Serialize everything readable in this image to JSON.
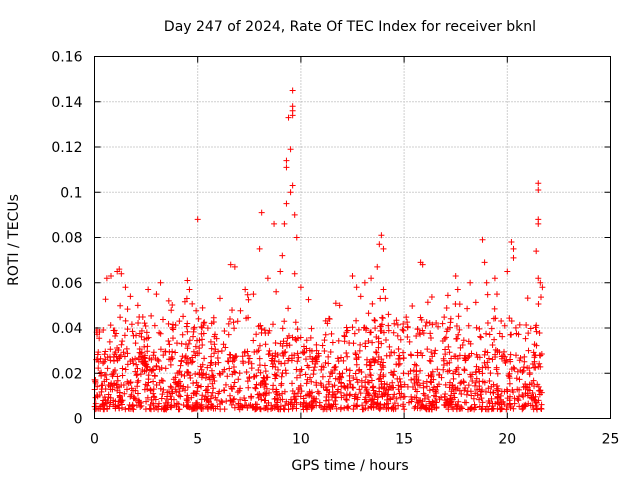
{
  "chart_data": {
    "type": "scatter",
    "title": "Day 247 of 2024, Rate Of TEC Index for receiver bknl",
    "xlabel": "GPS time / hours",
    "ylabel": "ROTI / TECUs",
    "xlim": [
      0,
      25
    ],
    "ylim": [
      0,
      0.16
    ],
    "xticks": [
      0,
      5,
      10,
      15,
      20,
      25
    ],
    "yticks": [
      0,
      0.02,
      0.04,
      0.06,
      0.08,
      0.1,
      0.12,
      0.14,
      0.16
    ],
    "grid": true,
    "marker": "+",
    "color": "#ff0000",
    "series": [
      {
        "name": "ROTI",
        "note": "dense cloud of points from ~0 to ~21.7 hours, bulk between 0.005 and 0.035 TECU/s",
        "baseline_range": [
          0.004,
          0.03
        ],
        "time_range": [
          0.0,
          21.7
        ],
        "outliers": [
          {
            "x": 0.6,
            "y": 0.062
          },
          {
            "x": 0.8,
            "y": 0.063
          },
          {
            "x": 1.1,
            "y": 0.065
          },
          {
            "x": 1.2,
            "y": 0.066
          },
          {
            "x": 1.3,
            "y": 0.064
          },
          {
            "x": 1.5,
            "y": 0.058
          },
          {
            "x": 2.1,
            "y": 0.05
          },
          {
            "x": 2.6,
            "y": 0.057
          },
          {
            "x": 3.0,
            "y": 0.055
          },
          {
            "x": 3.2,
            "y": 0.06
          },
          {
            "x": 3.6,
            "y": 0.052
          },
          {
            "x": 4.6,
            "y": 0.057
          },
          {
            "x": 4.5,
            "y": 0.061
          },
          {
            "x": 5.0,
            "y": 0.088
          },
          {
            "x": 6.6,
            "y": 0.068
          },
          {
            "x": 6.8,
            "y": 0.067
          },
          {
            "x": 7.3,
            "y": 0.057
          },
          {
            "x": 7.7,
            "y": 0.055
          },
          {
            "x": 8.0,
            "y": 0.075
          },
          {
            "x": 8.1,
            "y": 0.091
          },
          {
            "x": 8.4,
            "y": 0.062
          },
          {
            "x": 8.7,
            "y": 0.086
          },
          {
            "x": 8.8,
            "y": 0.056
          },
          {
            "x": 9.0,
            "y": 0.065
          },
          {
            "x": 9.1,
            "y": 0.072
          },
          {
            "x": 9.2,
            "y": 0.086
          },
          {
            "x": 9.3,
            "y": 0.095
          },
          {
            "x": 9.3,
            "y": 0.111
          },
          {
            "x": 9.3,
            "y": 0.114
          },
          {
            "x": 9.4,
            "y": 0.133
          },
          {
            "x": 9.5,
            "y": 0.1
          },
          {
            "x": 9.5,
            "y": 0.119
          },
          {
            "x": 9.6,
            "y": 0.134
          },
          {
            "x": 9.6,
            "y": 0.136
          },
          {
            "x": 9.6,
            "y": 0.138
          },
          {
            "x": 9.6,
            "y": 0.145
          },
          {
            "x": 9.6,
            "y": 0.103
          },
          {
            "x": 9.7,
            "y": 0.09
          },
          {
            "x": 9.8,
            "y": 0.08
          },
          {
            "x": 9.7,
            "y": 0.064
          },
          {
            "x": 10.0,
            "y": 0.058
          },
          {
            "x": 12.5,
            "y": 0.063
          },
          {
            "x": 12.7,
            "y": 0.058
          },
          {
            "x": 12.9,
            "y": 0.054
          },
          {
            "x": 13.1,
            "y": 0.06
          },
          {
            "x": 13.4,
            "y": 0.062
          },
          {
            "x": 13.7,
            "y": 0.067
          },
          {
            "x": 13.8,
            "y": 0.077
          },
          {
            "x": 13.9,
            "y": 0.081
          },
          {
            "x": 14.0,
            "y": 0.075
          },
          {
            "x": 14.0,
            "y": 0.057
          },
          {
            "x": 15.8,
            "y": 0.069
          },
          {
            "x": 15.9,
            "y": 0.068
          },
          {
            "x": 17.5,
            "y": 0.063
          },
          {
            "x": 17.6,
            "y": 0.057
          },
          {
            "x": 18.2,
            "y": 0.06
          },
          {
            "x": 18.8,
            "y": 0.079
          },
          {
            "x": 18.9,
            "y": 0.069
          },
          {
            "x": 19.0,
            "y": 0.06
          },
          {
            "x": 19.4,
            "y": 0.062
          },
          {
            "x": 19.5,
            "y": 0.055
          },
          {
            "x": 20.0,
            "y": 0.065
          },
          {
            "x": 20.2,
            "y": 0.078
          },
          {
            "x": 20.3,
            "y": 0.075
          },
          {
            "x": 20.3,
            "y": 0.071
          },
          {
            "x": 21.4,
            "y": 0.074
          },
          {
            "x": 21.5,
            "y": 0.086
          },
          {
            "x": 21.5,
            "y": 0.088
          },
          {
            "x": 21.5,
            "y": 0.101
          },
          {
            "x": 21.5,
            "y": 0.104
          },
          {
            "x": 21.5,
            "y": 0.062
          },
          {
            "x": 21.6,
            "y": 0.06
          },
          {
            "x": 21.7,
            "y": 0.058
          }
        ]
      }
    ]
  }
}
